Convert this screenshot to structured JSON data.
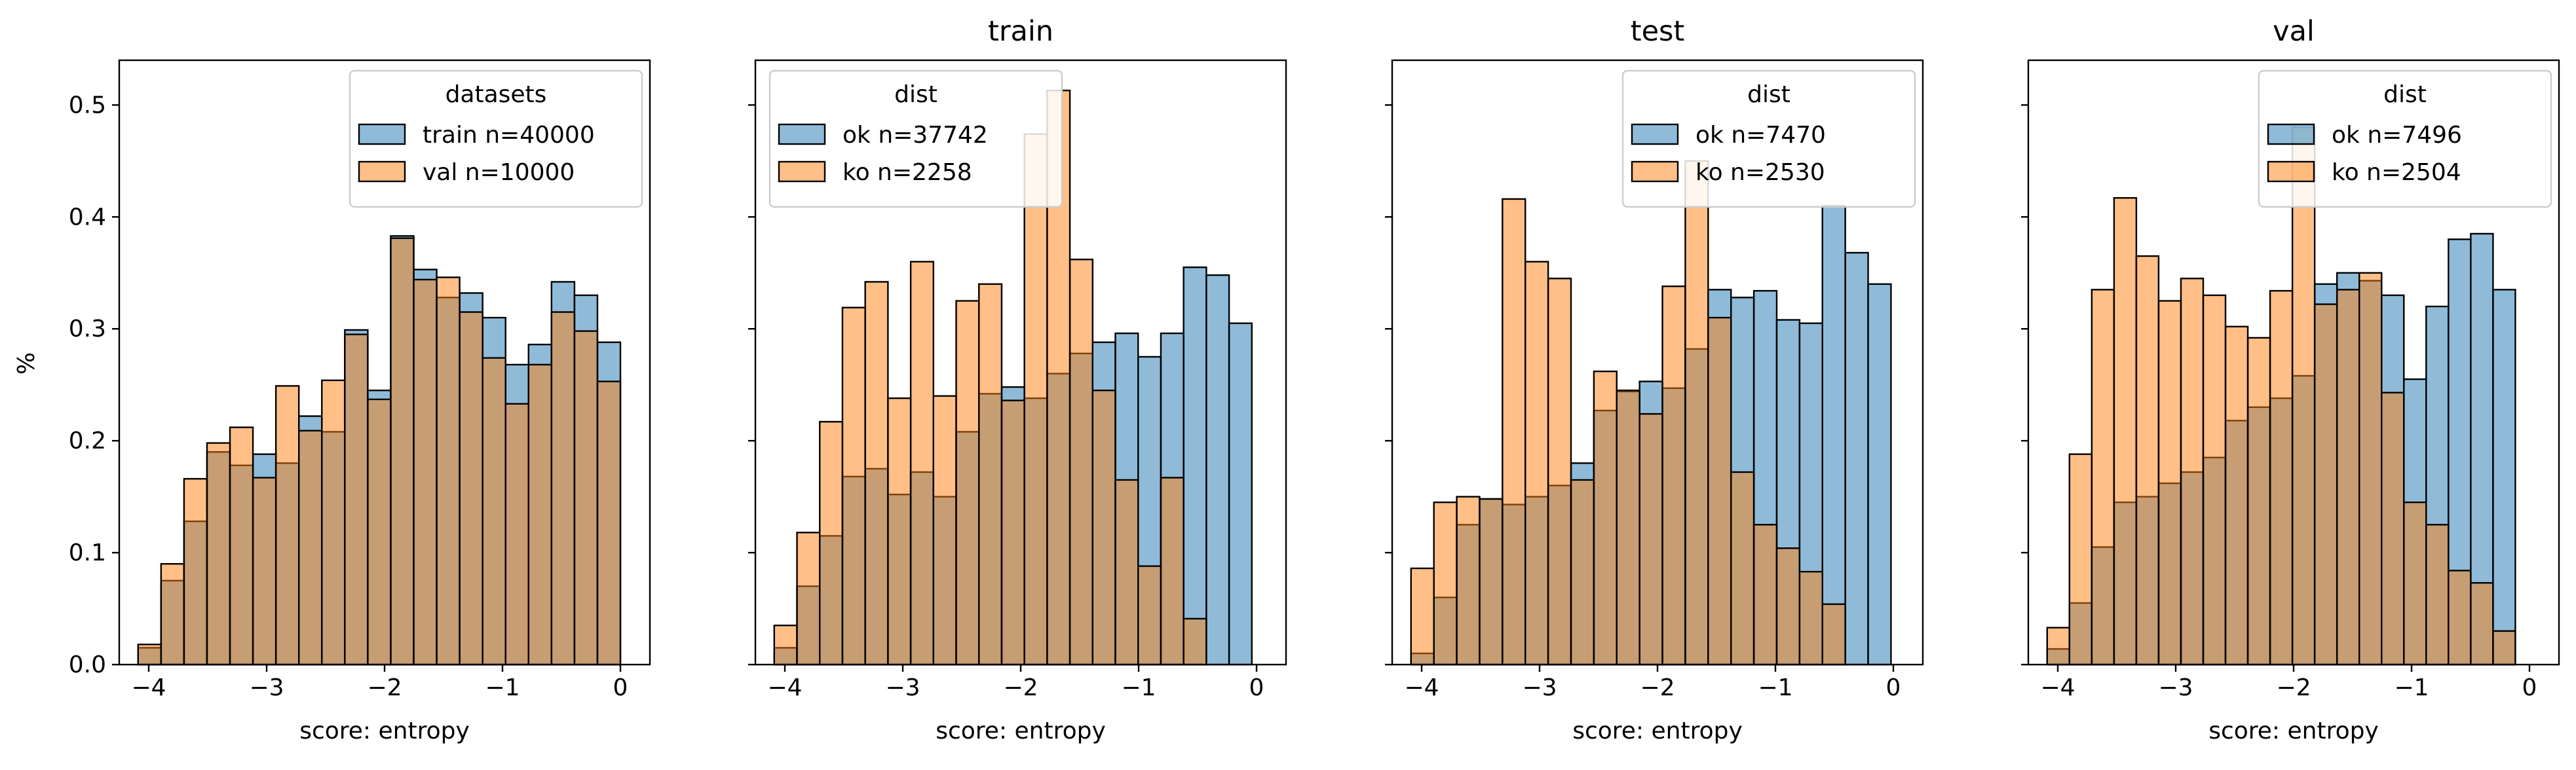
{
  "figure": {
    "ylabel": "%",
    "xlabel": "score: entropy"
  },
  "colors": {
    "blue": "#1f77b4",
    "orange": "#ff7f0e",
    "edge": "#000000",
    "legend_edge": "#cccccc"
  },
  "chart_data": [
    {
      "type": "bar",
      "title": "",
      "xlabel": "score: entropy",
      "ylabel": "%",
      "xlim": [
        -4.25,
        0.25
      ],
      "ylim": [
        0,
        0.54
      ],
      "xticks": [
        -4,
        -3,
        -2,
        -1,
        0
      ],
      "xtick_labels": [
        "−4",
        "−3",
        "−2",
        "−1",
        "0"
      ],
      "yticks": [
        0.0,
        0.1,
        0.2,
        0.3,
        0.4,
        0.5
      ],
      "ytick_labels": [
        "0.0",
        "0.1",
        "0.2",
        "0.3",
        "0.4",
        "0.5"
      ],
      "grid": false,
      "legend": {
        "title": "datasets",
        "position": "top-right"
      },
      "series": [
        {
          "name": "train n=40000",
          "color": "#1f77b4",
          "bins_start": -4.09,
          "bins_end": 0.0,
          "values": [
            0.015,
            0.075,
            0.128,
            0.19,
            0.178,
            0.188,
            0.18,
            0.222,
            0.208,
            0.299,
            0.245,
            0.383,
            0.353,
            0.328,
            0.332,
            0.31,
            0.268,
            0.286,
            0.342,
            0.33,
            0.288
          ]
        },
        {
          "name": "val n=10000",
          "color": "#ff7f0e",
          "bins_start": -4.09,
          "bins_end": 0.0,
          "values": [
            0.018,
            0.09,
            0.166,
            0.198,
            0.212,
            0.167,
            0.249,
            0.209,
            0.254,
            0.295,
            0.237,
            0.381,
            0.344,
            0.346,
            0.315,
            0.274,
            0.233,
            0.268,
            0.315,
            0.298,
            0.253
          ]
        }
      ]
    },
    {
      "type": "bar",
      "title": "train",
      "xlabel": "score: entropy",
      "ylabel": "",
      "xlim": [
        -4.25,
        0.25
      ],
      "ylim": [
        0,
        0.54
      ],
      "xticks": [
        -4,
        -3,
        -2,
        -1,
        0
      ],
      "xtick_labels": [
        "−4",
        "−3",
        "−2",
        "−1",
        "0"
      ],
      "grid": false,
      "legend": {
        "title": "dist",
        "position": "top-left"
      },
      "series": [
        {
          "name": "ok n=37742",
          "color": "#1f77b4",
          "bins_start": -4.09,
          "bins_end": -0.04,
          "values": [
            0.015,
            0.07,
            0.115,
            0.168,
            0.175,
            0.152,
            0.172,
            0.15,
            0.208,
            0.242,
            0.248,
            0.238,
            0.26,
            0.278,
            0.288,
            0.296,
            0.275,
            0.296,
            0.355,
            0.348,
            0.305
          ]
        },
        {
          "name": "ko n=2258",
          "color": "#ff7f0e",
          "bins_start": -4.09,
          "bins_end": -0.04,
          "values": [
            0.035,
            0.118,
            0.217,
            0.319,
            0.342,
            0.238,
            0.36,
            0.24,
            0.325,
            0.34,
            0.236,
            0.474,
            0.513,
            0.362,
            0.245,
            0.165,
            0.088,
            0.167,
            0.041,
            0.0,
            0.0
          ]
        }
      ]
    },
    {
      "type": "bar",
      "title": "test",
      "xlabel": "score: entropy",
      "ylabel": "",
      "xlim": [
        -4.25,
        0.25
      ],
      "ylim": [
        0,
        0.54
      ],
      "xticks": [
        -4,
        -3,
        -2,
        -1,
        0
      ],
      "xtick_labels": [
        "−4",
        "−3",
        "−2",
        "−1",
        "0"
      ],
      "grid": false,
      "legend": {
        "title": "dist",
        "position": "top-right"
      },
      "series": [
        {
          "name": "ok n=7470",
          "color": "#1f77b4",
          "bins_start": -4.09,
          "bins_end": -0.02,
          "values": [
            0.01,
            0.06,
            0.125,
            0.148,
            0.143,
            0.15,
            0.16,
            0.18,
            0.227,
            0.244,
            0.253,
            0.247,
            0.282,
            0.335,
            0.328,
            0.334,
            0.308,
            0.305,
            0.41,
            0.368,
            0.34
          ]
        },
        {
          "name": "ko n=2530",
          "color": "#ff7f0e",
          "bins_start": -4.09,
          "bins_end": -0.02,
          "values": [
            0.086,
            0.145,
            0.15,
            0.148,
            0.416,
            0.36,
            0.345,
            0.165,
            0.262,
            0.245,
            0.224,
            0.338,
            0.45,
            0.31,
            0.172,
            0.125,
            0.104,
            0.083,
            0.054,
            0.0,
            0.0
          ]
        }
      ]
    },
    {
      "type": "bar",
      "title": "val",
      "xlabel": "score: entropy",
      "ylabel": "",
      "xlim": [
        -4.25,
        0.25
      ],
      "ylim": [
        0,
        0.54
      ],
      "xticks": [
        -4,
        -3,
        -2,
        -1,
        0
      ],
      "xtick_labels": [
        "−4",
        "−3",
        "−2",
        "−1",
        "0"
      ],
      "grid": false,
      "legend": {
        "title": "dist",
        "position": "top-right"
      },
      "series": [
        {
          "name": "ok n=7496",
          "color": "#1f77b4",
          "bins_start": -4.09,
          "bins_end": -0.12,
          "values": [
            0.014,
            0.055,
            0.105,
            0.145,
            0.15,
            0.162,
            0.172,
            0.185,
            0.218,
            0.23,
            0.238,
            0.258,
            0.34,
            0.35,
            0.343,
            0.33,
            0.255,
            0.32,
            0.38,
            0.385,
            0.335
          ]
        },
        {
          "name": "ko n=2504",
          "color": "#ff7f0e",
          "bins_start": -4.09,
          "bins_end": -0.12,
          "values": [
            0.033,
            0.188,
            0.335,
            0.417,
            0.365,
            0.325,
            0.345,
            0.33,
            0.302,
            0.292,
            0.334,
            0.48,
            0.322,
            0.335,
            0.35,
            0.243,
            0.145,
            0.125,
            0.084,
            0.073,
            0.03
          ]
        }
      ]
    }
  ]
}
